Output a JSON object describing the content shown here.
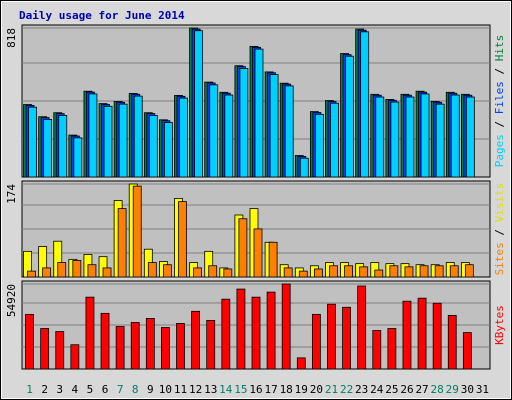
{
  "chart_data": [
    {
      "type": "bar",
      "title": "Daily usage for June 2014",
      "legend_separator": " / ",
      "ylim": [
        0,
        818
      ],
      "yticks": [
        818
      ],
      "grid": true,
      "series": [
        {
          "name": "Hits",
          "color": "#008040",
          "values": [
            398,
            331,
            353,
            230,
            471,
            403,
            415,
            459,
            353,
            314,
            448,
            818,
            521,
            465,
            611,
            717,
            577,
            515,
            118,
            359,
            420,
            678,
            812,
            454,
            426,
            454,
            471,
            415,
            465,
            454,
            null
          ]
        },
        {
          "name": "Files",
          "color": "#0040ff",
          "values": [
            393,
            326,
            348,
            225,
            466,
            398,
            410,
            454,
            348,
            309,
            443,
            812,
            516,
            460,
            606,
            712,
            572,
            510,
            113,
            354,
            415,
            672,
            806,
            449,
            421,
            449,
            466,
            410,
            460,
            449,
            null
          ]
        },
        {
          "name": "Pages",
          "color": "#00d0ff",
          "values": [
            383,
            316,
            338,
            215,
            456,
            388,
            400,
            444,
            338,
            299,
            433,
            803,
            506,
            450,
            596,
            702,
            562,
            500,
            103,
            344,
            405,
            663,
            797,
            439,
            411,
            439,
            456,
            400,
            450,
            439,
            null
          ]
        }
      ]
    },
    {
      "type": "bar",
      "legend_separator": " / ",
      "ylim": [
        0,
        174
      ],
      "yticks": [
        174
      ],
      "grid": true,
      "series": [
        {
          "name": "Visits",
          "color": "#ffff00",
          "values": [
            48,
            57,
            67,
            33,
            42,
            38,
            143,
            174,
            52,
            29,
            147,
            27,
            48,
            17,
            116,
            128,
            65,
            23,
            17,
            21,
            27,
            27,
            25,
            27,
            25,
            25,
            23,
            23,
            27,
            27,
            null
          ]
        },
        {
          "name": "Sites",
          "color": "#ff8000",
          "values": [
            11,
            17,
            27,
            31,
            23,
            17,
            128,
            170,
            27,
            23,
            141,
            17,
            21,
            15,
            109,
            90,
            65,
            17,
            11,
            15,
            21,
            21,
            19,
            13,
            21,
            19,
            21,
            21,
            21,
            23,
            null
          ]
        }
      ]
    },
    {
      "type": "bar",
      "ylim": [
        0,
        54920
      ],
      "yticks": [
        54920
      ],
      "grid": true,
      "categories": [
        "1",
        "2",
        "3",
        "4",
        "5",
        "6",
        "7",
        "8",
        "9",
        "10",
        "11",
        "12",
        "13",
        "14",
        "15",
        "16",
        "17",
        "18",
        "19",
        "20",
        "21",
        "22",
        "23",
        "24",
        "25",
        "26",
        "27",
        "28",
        "29",
        "30",
        "31"
      ],
      "weekend_label_color": "#008060",
      "weekends": [
        0,
        6,
        7,
        13,
        14,
        20,
        21,
        27,
        28
      ],
      "series": [
        {
          "name": "KBytes",
          "color": "#ff0000",
          "values": [
            35306,
            26153,
            24192,
            15691,
            46420,
            35960,
            27460,
            30075,
            32690,
            26806,
            29421,
            37267,
            31383,
            45113,
            51651,
            46420,
            49690,
            54920,
            7192,
            35306,
            41844,
            39882,
            53613,
            24845,
            26153,
            43806,
            45767,
            42498,
            34652,
            23537,
            null
          ]
        }
      ]
    }
  ]
}
